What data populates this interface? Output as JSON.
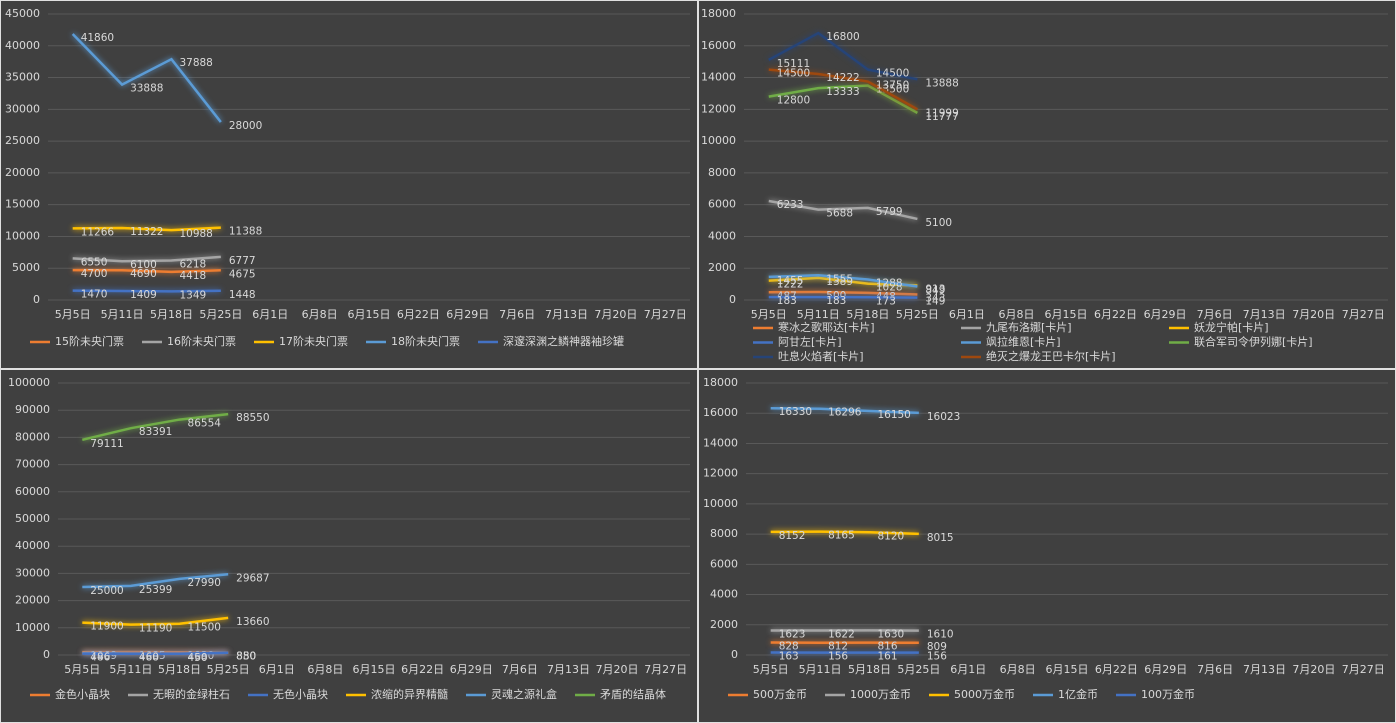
{
  "chart_data": [
    {
      "type": "line",
      "categories": [
        "5月5日",
        "5月11日",
        "5月18日",
        "5月25日",
        "6月1日",
        "6月8日",
        "6月15日",
        "6月22日",
        "6月29日",
        "7月6日",
        "7月13日",
        "7月20日",
        "7月27日"
      ],
      "ylim": [
        0,
        45000
      ],
      "yticks": [
        0,
        5000,
        10000,
        15000,
        20000,
        25000,
        30000,
        35000,
        40000,
        45000
      ],
      "grid": true,
      "series": [
        {
          "name": "15阶未央门票",
          "color": "#ed7d31",
          "values": [
            4700,
            4690,
            4418,
            4675,
            null,
            null,
            null,
            null,
            null,
            null,
            null,
            null,
            null
          ]
        },
        {
          "name": "16阶未央门票",
          "color": "#a5a5a5",
          "values": [
            6550,
            6100,
            6218,
            6777,
            null,
            null,
            null,
            null,
            null,
            null,
            null,
            null,
            null
          ]
        },
        {
          "name": "17阶未央门票",
          "color": "#ffc000",
          "values": [
            11266,
            11322,
            10988,
            11388,
            null,
            null,
            null,
            null,
            null,
            null,
            null,
            null,
            null
          ]
        },
        {
          "name": "18阶未央门票",
          "color": "#5b9bd5",
          "values": [
            41860,
            33888,
            37888,
            28000,
            null,
            null,
            null,
            null,
            null,
            null,
            null,
            null,
            null
          ]
        },
        {
          "name": "深邃深渊之鳞神器袖珍罐",
          "color": "#4472c4",
          "values": [
            1470,
            1409,
            1349,
            1448,
            null,
            null,
            null,
            null,
            null,
            null,
            null,
            null,
            null
          ]
        }
      ]
    },
    {
      "type": "line",
      "categories": [
        "5月5日",
        "5月11日",
        "5月18日",
        "5月25日",
        "6月1日",
        "6月8日",
        "6月15日",
        "6月22日",
        "6月29日",
        "7月6日",
        "7月13日",
        "7月20日",
        "7月27日"
      ],
      "ylim": [
        0,
        18000
      ],
      "yticks": [
        0,
        2000,
        4000,
        6000,
        8000,
        10000,
        12000,
        14000,
        16000,
        18000
      ],
      "grid": true,
      "series": [
        {
          "name": "寒冰之歌耶达[卡片]",
          "color": "#ed7d31",
          "values": [
            487,
            500,
            448,
            343,
            null,
            null,
            null,
            null,
            null,
            null,
            null,
            null,
            null
          ]
        },
        {
          "name": "九尾布洛娜[卡片]",
          "color": "#a5a5a5",
          "values": [
            6233,
            5688,
            5799,
            5100,
            null,
            null,
            null,
            null,
            null,
            null,
            null,
            null,
            null
          ]
        },
        {
          "name": "妖龙宁帕[卡片]",
          "color": "#ffc000",
          "values": [
            1222,
            1389,
            1028,
            913,
            null,
            null,
            null,
            null,
            null,
            null,
            null,
            null,
            null
          ]
        },
        {
          "name": "阿甘左[卡片]",
          "color": "#4472c4",
          "values": [
            183,
            183,
            173,
            149,
            null,
            null,
            null,
            null,
            null,
            null,
            null,
            null,
            null
          ]
        },
        {
          "name": "飒拉维恩[卡片]",
          "color": "#5b9bd5",
          "values": [
            1455,
            1555,
            1288,
            849,
            null,
            null,
            null,
            null,
            null,
            null,
            null,
            null,
            null
          ]
        },
        {
          "name": "联合军司令伊列娜[卡片]",
          "color": "#70ad47",
          "values": [
            12800,
            13333,
            13500,
            11777,
            null,
            null,
            null,
            null,
            null,
            null,
            null,
            null,
            null
          ]
        },
        {
          "name": "吐息火焰者[卡片]",
          "color": "#264478",
          "values": [
            15111,
            16800,
            14500,
            13888,
            null,
            null,
            null,
            null,
            null,
            null,
            null,
            null,
            null
          ]
        },
        {
          "name": "绝灭之爆龙王巴卡尔[卡片]",
          "color": "#9e480e",
          "values": [
            14500,
            14222,
            13750,
            11999,
            null,
            null,
            null,
            null,
            null,
            null,
            null,
            null,
            null
          ]
        }
      ]
    },
    {
      "type": "line",
      "categories": [
        "5月5日",
        "5月11日",
        "5月18日",
        "5月25日",
        "6月1日",
        "6月8日",
        "6月15日",
        "6月22日",
        "6月29日",
        "7月6日",
        "7月13日",
        "7月20日",
        "7月27日"
      ],
      "ylim": [
        0,
        100000
      ],
      "yticks": [
        0,
        10000,
        20000,
        30000,
        40000,
        50000,
        60000,
        70000,
        80000,
        90000,
        100000
      ],
      "grid": true,
      "series": [
        {
          "name": "金色小晶块",
          "color": "#ed7d31",
          "values": [
            1069,
            1085,
            1030,
            880,
            null,
            null,
            null,
            null,
            null,
            null,
            null,
            null,
            null
          ]
        },
        {
          "name": "无暇的金绿柱石",
          "color": "#a5a5a5",
          "values": [
            740,
            488,
            468,
            850,
            null,
            null,
            null,
            null,
            null,
            null,
            null,
            null,
            null
          ]
        },
        {
          "name": "无色小晶块",
          "color": "#4472c4",
          "values": [
            486,
            460,
            450,
            830,
            null,
            null,
            null,
            null,
            null,
            null,
            null,
            null,
            null
          ]
        },
        {
          "name": "浓缩的异界精髓",
          "color": "#ffc000",
          "values": [
            11900,
            11190,
            11500,
            13660,
            null,
            null,
            null,
            null,
            null,
            null,
            null,
            null,
            null
          ]
        },
        {
          "name": "灵魂之源礼盒",
          "color": "#5b9bd5",
          "values": [
            25000,
            25399,
            27990,
            29687,
            null,
            null,
            null,
            null,
            null,
            null,
            null,
            null,
            null
          ]
        },
        {
          "name": "矛盾的结晶体",
          "color": "#70ad47",
          "values": [
            79111,
            83391,
            86554,
            88550,
            null,
            null,
            null,
            null,
            null,
            null,
            null,
            null,
            null
          ]
        }
      ]
    },
    {
      "type": "line",
      "categories": [
        "5月5日",
        "5月11日",
        "5月18日",
        "5月25日",
        "6月1日",
        "6月8日",
        "6月15日",
        "6月22日",
        "6月29日",
        "7月6日",
        "7月13日",
        "7月20日",
        "7月27日"
      ],
      "ylim": [
        0,
        18000
      ],
      "yticks": [
        0,
        2000,
        4000,
        6000,
        8000,
        10000,
        12000,
        14000,
        16000,
        18000
      ],
      "grid": true,
      "series": [
        {
          "name": "500万金币",
          "color": "#ed7d31",
          "values": [
            828,
            812,
            816,
            809,
            null,
            null,
            null,
            null,
            null,
            null,
            null,
            null,
            null
          ]
        },
        {
          "name": "1000万金币",
          "color": "#a5a5a5",
          "values": [
            1623,
            1622,
            1630,
            1610,
            null,
            null,
            null,
            null,
            null,
            null,
            null,
            null,
            null
          ]
        },
        {
          "name": "5000万金币",
          "color": "#ffc000",
          "values": [
            8152,
            8165,
            8120,
            8015,
            null,
            null,
            null,
            null,
            null,
            null,
            null,
            null,
            null
          ]
        },
        {
          "name": "1亿金币",
          "color": "#5b9bd5",
          "values": [
            16330,
            16296,
            16150,
            16023,
            null,
            null,
            null,
            null,
            null,
            null,
            null,
            null,
            null
          ]
        },
        {
          "name": "100万金币",
          "color": "#4472c4",
          "values": [
            163,
            156,
            161,
            156,
            null,
            null,
            null,
            null,
            null,
            null,
            null,
            null,
            null
          ]
        }
      ]
    }
  ]
}
